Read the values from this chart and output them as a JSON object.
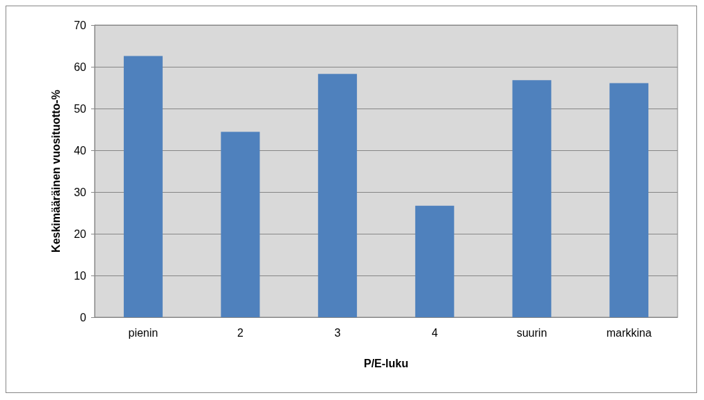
{
  "chart_data": {
    "type": "bar",
    "xlabel": "P/E-luku",
    "ylabel": "Keskimääräinen vuosituotto-%",
    "categories": [
      "pienin",
      "2",
      "3",
      "4",
      "suurin",
      "markkina"
    ],
    "values": [
      62.6,
      44.4,
      58.3,
      26.7,
      56.8,
      56.1
    ],
    "color": "#4f81bd",
    "ylim": [
      0,
      70
    ],
    "yticks": [
      0,
      10,
      20,
      30,
      40,
      50,
      60,
      70
    ],
    "grid": "y"
  }
}
